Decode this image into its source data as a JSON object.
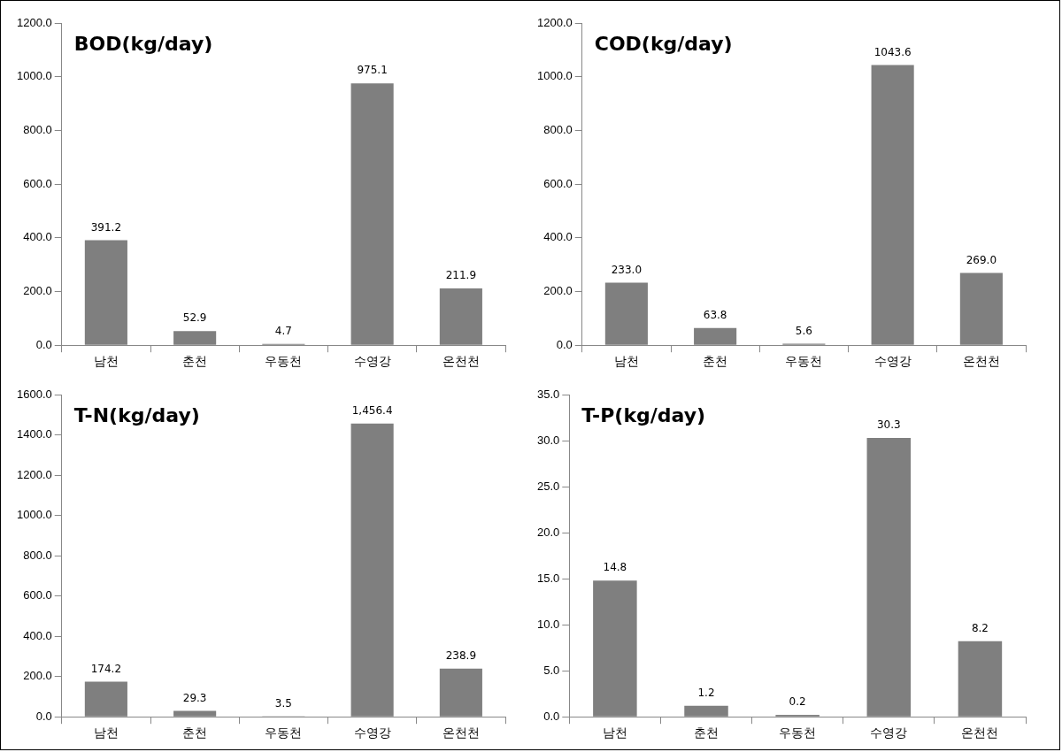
{
  "chart_data": [
    {
      "type": "bar",
      "title": "BOD(kg/day)",
      "categories": [
        "남천",
        "춘천",
        "우동천",
        "수영강",
        "온천천"
      ],
      "values": [
        391.2,
        52.9,
        4.7,
        975.1,
        211.9
      ],
      "value_labels": [
        "391.2",
        "52.9",
        "4.7",
        "975.1",
        "211.9"
      ],
      "color": "#7f7f7f",
      "ylim": [
        0,
        1200
      ],
      "yticks": [
        {
          "value": 0,
          "label": "0.0"
        },
        {
          "value": 200,
          "label": "200.0"
        },
        {
          "value": 400,
          "label": "400.0"
        },
        {
          "value": 600,
          "label": "600.0"
        },
        {
          "value": 800,
          "label": "800.0"
        },
        {
          "value": 1000,
          "label": "1000.0"
        },
        {
          "value": 1200,
          "label": "1200.0"
        }
      ],
      "grid": false,
      "legend": false
    },
    {
      "type": "bar",
      "title": "COD(kg/day)",
      "categories": [
        "남천",
        "춘천",
        "우동천",
        "수영강",
        "온천천"
      ],
      "values": [
        233.0,
        63.8,
        5.6,
        1043.6,
        269.0
      ],
      "value_labels": [
        "233.0",
        "63.8",
        "5.6",
        "1043.6",
        "269.0"
      ],
      "color": "#7f7f7f",
      "ylim": [
        0,
        1200
      ],
      "yticks": [
        {
          "value": 0,
          "label": "0.0"
        },
        {
          "value": 200,
          "label": "200.0"
        },
        {
          "value": 400,
          "label": "400.0"
        },
        {
          "value": 600,
          "label": "600.0"
        },
        {
          "value": 800,
          "label": "800.0"
        },
        {
          "value": 1000,
          "label": "1000.0"
        },
        {
          "value": 1200,
          "label": "1200.0"
        }
      ],
      "grid": false,
      "legend": false
    },
    {
      "type": "bar",
      "title": "T-N(kg/day)",
      "categories": [
        "남천",
        "춘천",
        "우동천",
        "수영강",
        "온천천"
      ],
      "values": [
        174.2,
        29.3,
        3.5,
        1456.4,
        238.9
      ],
      "value_labels": [
        "174.2",
        "29.3",
        "3.5",
        "1,456.4",
        "238.9"
      ],
      "color": "#7f7f7f",
      "ylim": [
        0,
        1600
      ],
      "yticks": [
        {
          "value": 0,
          "label": "0.0"
        },
        {
          "value": 200,
          "label": "200.0"
        },
        {
          "value": 400,
          "label": "400.0"
        },
        {
          "value": 600,
          "label": "600.0"
        },
        {
          "value": 800,
          "label": "800.0"
        },
        {
          "value": 1000,
          "label": "1000.0"
        },
        {
          "value": 1200,
          "label": "1200.0"
        },
        {
          "value": 1400,
          "label": "1400.0"
        },
        {
          "value": 1600,
          "label": "1600.0"
        }
      ],
      "grid": false,
      "legend": false
    },
    {
      "type": "bar",
      "title": "T-P(kg/day)",
      "categories": [
        "남천",
        "춘천",
        "우동천",
        "수영강",
        "온천천"
      ],
      "values": [
        14.8,
        1.2,
        0.2,
        30.3,
        8.2
      ],
      "value_labels": [
        "14.8",
        "1.2",
        "0.2",
        "30.3",
        "8.2"
      ],
      "color": "#7f7f7f",
      "ylim": [
        0,
        35
      ],
      "yticks": [
        {
          "value": 0,
          "label": "0.0"
        },
        {
          "value": 5,
          "label": "5.0"
        },
        {
          "value": 10,
          "label": "10.0"
        },
        {
          "value": 15,
          "label": "15.0"
        },
        {
          "value": 20,
          "label": "20.0"
        },
        {
          "value": 25,
          "label": "25.0"
        },
        {
          "value": 30,
          "label": "30.0"
        },
        {
          "value": 35,
          "label": "35.0"
        }
      ],
      "grid": false,
      "legend": false
    }
  ]
}
